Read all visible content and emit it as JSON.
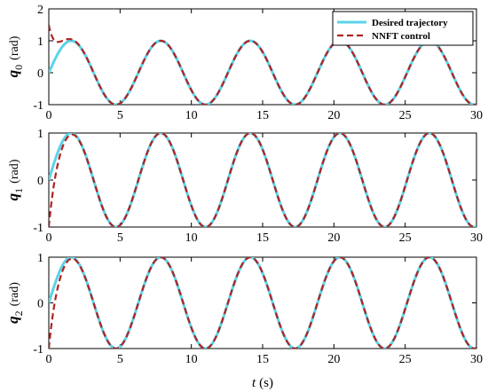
{
  "chart_data": {
    "type": "line",
    "xlabel_var": "t",
    "xlabel_unit": "(s)",
    "xlim": [
      0,
      30
    ],
    "x_ticks": [
      "0",
      "5",
      "10",
      "15",
      "20",
      "25",
      "30"
    ],
    "legend": {
      "placement": "top-right of first panel",
      "entries": [
        {
          "name": "Desired trajectory",
          "color": "#5bd3e8",
          "style": "solid"
        },
        {
          "name": "NNFT control",
          "color": "#b22222",
          "style": "dashed"
        }
      ]
    },
    "desired_signal": {
      "form": "sin(t)",
      "x": [
        0,
        1.571,
        3.142,
        4.712,
        6.283,
        7.854,
        9.425,
        10.996,
        12.566,
        14.137,
        15.708,
        17.279,
        18.85,
        20.42,
        21.991,
        23.562,
        25.133,
        26.704,
        28.274,
        29.845
      ],
      "y": [
        0,
        1,
        0,
        -1,
        0,
        1,
        0,
        -1,
        0,
        1,
        0,
        -1,
        0,
        1,
        0,
        -1,
        0,
        1,
        0,
        -1
      ]
    },
    "panels": [
      {
        "var": "q",
        "sub": "0",
        "unit": "(rad)",
        "ylim": [
          -1,
          2
        ],
        "y_ticks": [
          "2",
          "1",
          "0",
          "-1"
        ],
        "tick_values": [
          2,
          1,
          0,
          -1
        ],
        "nnft_initial": 1.5,
        "nnft_decay_rate": 2.2,
        "series": [
          {
            "name": "Desired trajectory",
            "x": [
              0,
              1.571,
              4.712,
              7.854,
              10.996,
              14.137,
              17.279,
              20.42,
              23.562,
              26.704,
              29.845
            ],
            "y": [
              0,
              1,
              -1,
              1,
              -1,
              1,
              -1,
              1,
              -1,
              1,
              -1
            ]
          },
          {
            "name": "NNFT control",
            "x": [
              0,
              0.5,
              1.0,
              1.571,
              4.712,
              7.854,
              10.996,
              14.137,
              17.279,
              20.42,
              23.562,
              26.704,
              29.845
            ],
            "y": [
              1.5,
              1.07,
              1.05,
              1.0,
              -1,
              1,
              -1,
              1,
              -1,
              1,
              -1,
              1,
              -1
            ]
          }
        ]
      },
      {
        "var": "q",
        "sub": "1",
        "unit": "(rad)",
        "ylim": [
          -1,
          1
        ],
        "y_ticks": [
          "1",
          "0",
          "-1"
        ],
        "tick_values": [
          1,
          0,
          -1
        ],
        "nnft_initial": -1.0,
        "nnft_decay_rate": 2.2,
        "series": [
          {
            "name": "Desired trajectory",
            "x": [
              0,
              1.571,
              4.712,
              7.854,
              10.996,
              14.137,
              17.279,
              20.42,
              23.562,
              26.704,
              29.845
            ],
            "y": [
              0,
              1,
              -1,
              1,
              -1,
              1,
              -1,
              1,
              -1,
              1,
              -1
            ]
          },
          {
            "name": "NNFT control",
            "x": [
              0,
              0.5,
              1.0,
              1.571,
              4.712,
              7.854,
              10.996,
              14.137,
              17.279,
              20.42,
              23.562,
              26.704,
              29.845
            ],
            "y": [
              -1.0,
              0.15,
              0.73,
              1.0,
              -1,
              1,
              -1,
              1,
              -1,
              1,
              -1,
              1,
              -1
            ]
          }
        ]
      },
      {
        "var": "q",
        "sub": "2",
        "unit": "(rad)",
        "ylim": [
          -1,
          1
        ],
        "y_ticks": [
          "1",
          "0",
          "-1"
        ],
        "tick_values": [
          1,
          0,
          -1
        ],
        "nnft_initial": -1.0,
        "nnft_decay_rate": 2.2,
        "series": [
          {
            "name": "Desired trajectory",
            "x": [
              0,
              1.571,
              4.712,
              7.854,
              10.996,
              14.137,
              17.279,
              20.42,
              23.562,
              26.704,
              29.845
            ],
            "y": [
              0,
              1,
              -1,
              1,
              -1,
              1,
              -1,
              1,
              -1,
              1,
              -1
            ]
          },
          {
            "name": "NNFT control",
            "x": [
              0,
              0.5,
              1.0,
              1.571,
              4.712,
              7.854,
              10.996,
              14.137,
              17.279,
              20.42,
              23.562,
              26.704,
              29.845
            ],
            "y": [
              -1.0,
              0.15,
              0.73,
              1.0,
              -1,
              1,
              -1,
              1,
              -1,
              1,
              -1,
              1,
              -1
            ]
          }
        ]
      }
    ]
  }
}
